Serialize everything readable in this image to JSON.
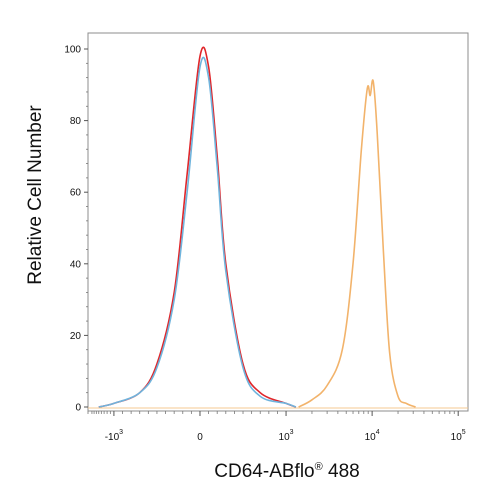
{
  "chart_data": {
    "type": "line",
    "title": "",
    "xlabel": "CD64-ABflo",
    "xlabel_superscript": "®",
    "xlabel_suffix": "488",
    "ylabel": "Relative Cell Number",
    "x_scale": "biexponential",
    "ylim": [
      0,
      105
    ],
    "y_ticks": [
      0,
      20,
      40,
      60,
      80,
      100
    ],
    "x_ticks": [
      {
        "base": "-10",
        "exp": "3",
        "value": -1000
      },
      {
        "base": "0",
        "exp": "",
        "value": 0
      },
      {
        "base": "10",
        "exp": "3",
        "value": 1000
      },
      {
        "base": "10",
        "exp": "4",
        "value": 10000
      },
      {
        "base": "10",
        "exp": "5",
        "value": 100000
      }
    ],
    "grid": false,
    "legend": "none",
    "series": [
      {
        "color": "#e0262a",
        "x": [
          -1500,
          -1000,
          -700,
          -500,
          -300,
          -150,
          0,
          100,
          200,
          300,
          500,
          700,
          1000,
          1300
        ],
        "y": [
          0,
          1,
          4,
          12,
          32,
          65,
          98,
          95,
          70,
          40,
          12,
          4,
          1,
          0
        ]
      },
      {
        "color": "#6fb4dd",
        "x": [
          -1500,
          -1000,
          -700,
          -500,
          -300,
          -150,
          0,
          100,
          200,
          300,
          500,
          700,
          1000,
          1300
        ],
        "y": [
          0,
          1,
          4,
          11,
          30,
          60,
          95,
          92,
          67,
          38,
          11,
          3,
          1,
          0
        ]
      },
      {
        "color": "#f2b36b",
        "x": [
          1400,
          2000,
          3000,
          4500,
          6000,
          7500,
          8800,
          9500,
          10300,
          11500,
          13500,
          16000,
          20000,
          25000,
          32000
        ],
        "y": [
          0,
          2,
          6,
          16,
          40,
          72,
          89,
          87,
          91,
          76,
          44,
          15,
          3,
          1,
          0
        ]
      }
    ]
  }
}
